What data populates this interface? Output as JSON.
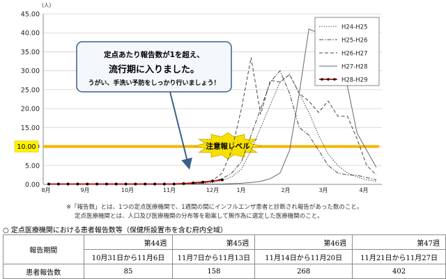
{
  "chart_data": {
    "type": "line",
    "title": "",
    "ylabel": "(人)",
    "xlabel": "",
    "ylim": [
      0,
      45
    ],
    "yticks": [
      "0.00",
      "5.00",
      "10.00",
      "15.00",
      "20.00",
      "25.00",
      "30.00",
      "35.00",
      "40.00",
      "45.00"
    ],
    "month_labels": [
      "8月",
      "9月",
      "10月",
      "11月",
      "12月",
      "1月",
      "2月",
      "3月",
      "4月"
    ],
    "x_weeks": 35,
    "grid": true,
    "legend_position": "top-right",
    "warning_line": {
      "value": 10.0,
      "axis_label": "10.00",
      "label": "注意報レベル",
      "color": "#f5b400"
    },
    "series": [
      {
        "name": "H24-H25",
        "style": "dotted",
        "color": "#444444",
        "values": [
          0.1,
          0.1,
          0.1,
          0.1,
          0.1,
          0.1,
          0.1,
          0.1,
          0.1,
          0.1,
          0.1,
          0.1,
          0.1,
          0.1,
          0.1,
          0.2,
          0.3,
          0.5,
          1.0,
          2.0,
          4.0,
          9.0,
          15.0,
          21.0,
          27.0,
          29.0,
          24.0,
          19.0,
          13.0,
          8.0,
          5.0,
          3.0,
          2.0,
          1.2,
          0.8
        ]
      },
      {
        "name": "H25-H26",
        "style": "dashdot",
        "color": "#444444",
        "values": [
          0.1,
          0.1,
          0.1,
          0.1,
          0.1,
          0.1,
          0.1,
          0.1,
          0.1,
          0.1,
          0.1,
          0.1,
          0.1,
          0.1,
          0.1,
          0.2,
          0.4,
          0.8,
          1.5,
          3.0,
          6.0,
          13.0,
          20.0,
          27.0,
          30.0,
          24.0,
          15.0,
          13.0,
          9.0,
          5.0,
          3.0,
          2.5,
          2.4,
          1.8,
          1.2
        ]
      },
      {
        "name": "H26-H27",
        "style": "dashed",
        "color": "#444444",
        "values": [
          0.1,
          0.1,
          0.1,
          0.1,
          0.1,
          0.1,
          0.1,
          0.1,
          0.1,
          0.1,
          0.1,
          0.1,
          0.1,
          0.1,
          0.1,
          0.2,
          0.4,
          1.0,
          3.0,
          9.0,
          20.0,
          33.5,
          18.5,
          27.5,
          27.0,
          29.0,
          24.0,
          22.0,
          19.0,
          22.0,
          18.0,
          18.0,
          12.0,
          5.0,
          2.5
        ]
      },
      {
        "name": "H27-H28",
        "style": "solid",
        "color": "#666666",
        "values": [
          0.1,
          0.1,
          0.1,
          0.1,
          0.1,
          0.1,
          0.1,
          0.1,
          0.1,
          0.1,
          0.1,
          0.1,
          0.1,
          0.1,
          0.1,
          0.1,
          0.1,
          0.1,
          0.1,
          0.2,
          0.3,
          0.5,
          0.8,
          1.5,
          3.0,
          9.0,
          24.0,
          41.0,
          40.0,
          40.5,
          37.0,
          26.0,
          13.5,
          9.0,
          4.5
        ]
      },
      {
        "name": "H28-H29",
        "style": "marker",
        "color": "#cc0000",
        "values": [
          0.1,
          0.1,
          0.1,
          0.1,
          0.1,
          0.1,
          0.1,
          0.1,
          0.1,
          0.1,
          0.1,
          0.1,
          0.1,
          0.1,
          0.2,
          0.4,
          0.6,
          0.9,
          1.2
        ]
      }
    ],
    "callout": {
      "line1": "定点あたり報告数が1を超え、",
      "line2": "流行期に入りました。",
      "line3": "うがい、手洗い予防をしっかり行いましょう！"
    }
  },
  "notes": {
    "line1": "※「報告数」とは、1つの定点医療機関で、1週間の間にインフルエンザ患者と診断され報告があった数のこと。",
    "line2": "定点医療機関とは、人口及び医療機関の分布等を勘案して無作為に選定した医療機関のこと。"
  },
  "section": {
    "title": "○ 定点医療機関における患者報告数等（保健所設置市を含む府内全域）"
  },
  "table": {
    "col0_header": "報告期間",
    "weeks": [
      {
        "week": "第44週",
        "range": "10月31日から11月6日",
        "count": "85"
      },
      {
        "week": "第45週",
        "range": "11月7日から11月13日",
        "count": "158"
      },
      {
        "week": "第46週",
        "range": "11月14日から11月20日",
        "count": "268"
      },
      {
        "week": "第47週",
        "range": "11月21日から11月27日",
        "count": "402"
      }
    ],
    "count_label": "患者報告数"
  }
}
